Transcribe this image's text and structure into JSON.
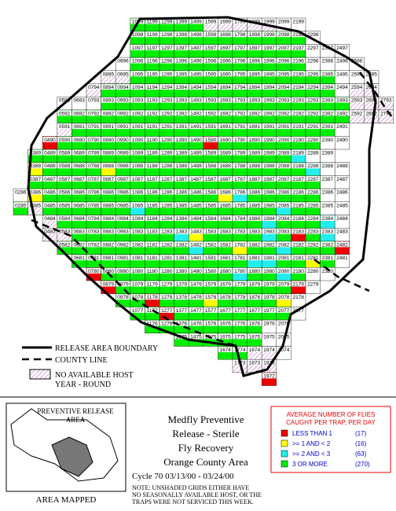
{
  "grid": {
    "rows": [
      {
        "cells": [
          "1099",
          "1199",
          "1299",
          "1399",
          "1499",
          "1599",
          "1699",
          "1799",
          "1899",
          "1999",
          "2099",
          "2199"
        ],
        "fill": "GGGGGHHHHHWW"
      },
      {
        "cells": [
          "1098",
          "1198",
          "1298",
          "1398",
          "1498",
          "1598",
          "1698",
          "1798",
          "1898",
          "1998",
          "2098",
          "2198",
          "2298"
        ],
        "fill": "GGGGGGGGGGGGW"
      },
      {
        "cells": [
          "1097",
          "1197",
          "1297",
          "1397",
          "1497",
          "1597",
          "1697",
          "1797",
          "1897",
          "1997",
          "2097",
          "2197",
          "2297",
          "2397",
          "2497"
        ],
        "fill": "GGGGGGGGGGGGWWW"
      },
      {
        "cells": [
          "0996",
          "1096",
          "1196",
          "1296",
          "1396",
          "1496",
          "1596",
          "1696",
          "1796",
          "1896",
          "1996",
          "2096",
          "2196",
          "2296",
          "2396",
          "2496",
          "2596"
        ],
        "fill": "WGGGGGGGGGGGGWWWW"
      },
      {
        "cells": [
          "0895",
          "0995",
          "1095",
          "1195",
          "1295",
          "1395",
          "1495",
          "1595",
          "1695",
          "1795",
          "1895",
          "1995",
          "2095",
          "2195",
          "2295",
          "2395",
          "2495",
          "2595",
          "2695"
        ],
        "fill": "HHGGGGGGGGGGGGGGWWW"
      },
      {
        "cells": [
          "0794",
          "0894",
          "0994",
          "1094",
          "1194",
          "1294",
          "1394",
          "1494",
          "1594",
          "1694",
          "1794",
          "1894",
          "1994",
          "2094",
          "2194",
          "2294",
          "2394",
          "2494",
          "2594",
          "2694"
        ],
        "fill": "HGGGGGGGGGGGGGGGGWHH"
      },
      {
        "cells": [
          "0593",
          "0693",
          "0793",
          "0893",
          "0993",
          "1093",
          "1193",
          "1293",
          "1393",
          "1493",
          "1593",
          "1693",
          "1793",
          "1893",
          "1993",
          "2093",
          "2193",
          "2293",
          "2393",
          "2493",
          "2593",
          "2693",
          "2793"
        ],
        "fill": "WWWGGGGGGGGGGGGGGGGGHHH"
      },
      {
        "cells": [
          "0592",
          "0692",
          "0792",
          "0892",
          "0992",
          "1092",
          "1192",
          "1292",
          "1392",
          "1492",
          "1592",
          "1692",
          "1792",
          "1892",
          "1992",
          "2092",
          "2192",
          "2292",
          "2392",
          "2492",
          "2592",
          "2692",
          "2792"
        ],
        "fill": "GGGGGGGGGGGGGGGGGGGGHHH"
      },
      {
        "cells": [
          "0591",
          "0691",
          "0791",
          "0891",
          "0991",
          "1091",
          "1191",
          "1291",
          "1391",
          "1491",
          "1591",
          "1691",
          "1791",
          "1891",
          "1991",
          "2091",
          "2191",
          "2291",
          "2391",
          "2491"
        ],
        "fill": "HGGGGGGGGGGGGGGGGGGW"
      },
      {
        "cells": [
          "0490",
          "0590",
          "0690",
          "0790",
          "0890",
          "0990",
          "1090",
          "1190",
          "1290",
          "1390",
          "1490",
          "1590",
          "1690",
          "1790",
          "1890",
          "1990",
          "2090",
          "2190",
          "2290",
          "2390",
          "2490"
        ],
        "fill": "RGGGGGGGGGGRGGGGGGGWW"
      },
      {
        "cells": [
          "0389",
          "0489",
          "0589",
          "0689",
          "0789",
          "0889",
          "0989",
          "1089",
          "1189",
          "1289",
          "1389",
          "1489",
          "1589",
          "1689",
          "1789",
          "1889",
          "1989",
          "2089",
          "2189",
          "2289",
          "2389"
        ],
        "fill": "GGGGGGGGGGGGGGGGGGCWW"
      },
      {
        "cells": [
          "0388",
          "0488",
          "0588",
          "0688",
          "0788",
          "0888",
          "0988",
          "1088",
          "1188",
          "1288",
          "1388",
          "1488",
          "1588",
          "1688",
          "1788",
          "1888",
          "1988",
          "2088",
          "2188",
          "2288",
          "2388",
          "2488"
        ],
        "fill": "YGGGGYGGGGGGGGGGGGGCWW"
      },
      {
        "cells": [
          "0387",
          "0487",
          "0587",
          "0687",
          "0787",
          "0887",
          "0987",
          "1087",
          "1187",
          "1287",
          "1387",
          "1487",
          "1587",
          "1687",
          "1787",
          "1887",
          "1987",
          "2087",
          "2187",
          "2287",
          "2387",
          "2487"
        ],
        "fill": "GGGGGGGGGGGGGGGGGGGGWW"
      },
      {
        "cells": [
          "0286",
          "0386",
          "0486",
          "0586",
          "0686",
          "0786",
          "0886",
          "0986",
          "1086",
          "1186",
          "1286",
          "1386",
          "1486",
          "1586",
          "1686",
          "1786",
          "1886",
          "1986",
          "2086",
          "2186",
          "2286",
          "2386",
          "2486"
        ],
        "fill": "WYGGGGGGGGGGGGYCGGGGGWW"
      },
      {
        "cells": [
          "0285",
          "0385",
          "0485",
          "0585",
          "0685",
          "0785",
          "0885",
          "0985",
          "1085",
          "1185",
          "1285",
          "1385",
          "1485",
          "1585",
          "1685",
          "1785",
          "1885",
          "1985",
          "2085",
          "2185",
          "2285",
          "2385",
          "2485"
        ],
        "fill": "GHGGGGGGCGGGGGGGGGCGGWW"
      },
      {
        "cells": [
          "0484",
          "0584",
          "0684",
          "0784",
          "0884",
          "0984",
          "1084",
          "1184",
          "1284",
          "1384",
          "1484",
          "1584",
          "1684",
          "1784",
          "1884",
          "1984",
          "2084",
          "2184",
          "2284",
          "2384",
          "2484"
        ],
        "fill": "HGGGGGGGGGGGGGGCGGGCW"
      },
      {
        "cells": [
          "0483",
          "0583",
          "0683",
          "0783",
          "0883",
          "0983",
          "1083",
          "1183",
          "1283",
          "1383",
          "1483",
          "1583",
          "1683",
          "1783",
          "1883",
          "1983",
          "2083",
          "2183",
          "2283",
          "2383",
          "2483"
        ],
        "fill": "HHGGGGGGGCYGGGGCGRGCW"
      },
      {
        "cells": [
          "0582",
          "0682",
          "0782",
          "0882",
          "0982",
          "1082",
          "1182",
          "1282",
          "1382",
          "1482",
          "1582",
          "1682",
          "1782",
          "1882",
          "1982",
          "2082",
          "2182",
          "2282",
          "2382",
          "2482"
        ],
        "fill": "GGGGGGGGGCGGYGGCGGGR"
      },
      {
        "cells": [
          "0681",
          "0781",
          "0881",
          "0981",
          "1081",
          "1181",
          "1281",
          "1381",
          "1481",
          "1581",
          "1681",
          "1781",
          "1881",
          "1981",
          "2081",
          "2181",
          "2281",
          "2381",
          "2481"
        ],
        "fill": "GGGGGGGGGGGGCCGGYGW"
      },
      {
        "cells": [
          "0780",
          "0880",
          "0980",
          "1080",
          "1180",
          "1280",
          "1380",
          "1480",
          "1580",
          "1680",
          "1780",
          "1880",
          "1980",
          "2080",
          "2180",
          "2280",
          "2380"
        ],
        "fill": "RGGGGGGGGGCGGCGWW"
      },
      {
        "cells": [
          "0879",
          "0979",
          "1079",
          "1179",
          "1279",
          "1379",
          "1479",
          "1579",
          "1679",
          "1779",
          "1879",
          "1979",
          "2079",
          "2179",
          "2279"
        ],
        "fill": "RGGGGGGGGGGGGRW"
      },
      {
        "cells": [
          "0978",
          "1078",
          "1178",
          "1278",
          "1378",
          "1478",
          "1578",
          "1678",
          "1778",
          "1878",
          "1978",
          "2078",
          "2178"
        ],
        "fill": "GGRGGGYGGGGYW"
      },
      {
        "cells": [
          "1077",
          "1177",
          "1277",
          "1377",
          "1477",
          "1577",
          "1677",
          "1777",
          "1877",
          "1977",
          "2077",
          "2177"
        ],
        "fill": "GGRGGGGGGGGW"
      },
      {
        "cells": [
          "1176",
          "1276",
          "1376",
          "1476",
          "1576",
          "1676",
          "1776",
          "1876",
          "1976",
          "2076"
        ],
        "fill": "GGGGGGGGWW"
      },
      {
        "cells": [
          "1375",
          "1475",
          "1575",
          "1675",
          "1775",
          "1875",
          "1975",
          "2075"
        ],
        "fill": "GGGGGGWW"
      },
      {
        "cells": [
          "1674",
          "1774",
          "1874",
          "1974",
          "2074"
        ],
        "fill": "GGHHW"
      },
      {
        "cells": [
          "1773",
          "1873",
          "1973"
        ],
        "fill": "HHH"
      },
      {
        "cells": [
          "1972"
        ],
        "fill": "R"
      }
    ],
    "colors": {
      "G": "#00ee00",
      "C": "#22eeee",
      "Y": "#ffff00",
      "R": "#ee0000",
      "W": "#ffffff"
    }
  },
  "map_legend": {
    "boundary": "RELEASE AREA BOUNDARY",
    "county": "COUNTY LINE",
    "no_host": [
      "NO AVAILABLE HOST",
      "YEAR - ROUND"
    ]
  },
  "inset": {
    "label": [
      "PREVENTIVE RELEASE",
      "AREA"
    ],
    "caption": "AREA MAPPED"
  },
  "title_block": {
    "lines": [
      "Medfly Preventive",
      "Release - Sterile",
      "Fly Recovery",
      "Orange County Area"
    ],
    "cycle": "Cycle 70   03/13/00 - 03/24/00",
    "note": [
      "NOTE: UNSHADED GRIDS EITHER HAVE",
      "NO SEASONALLY AVAILABLE HOST, OR THE",
      "TRAPS WERE NOT SERVICED THIS WEEK."
    ]
  },
  "count_legend": {
    "title": [
      "AVERAGE NUMBER OF FLIES",
      "CAUGHT PER TRAP, PER DAY"
    ],
    "entries": [
      {
        "label": "LESS THAN 1",
        "count": "(17)",
        "color": "#ee0000"
      },
      {
        "label": ">= 1 AND < 2",
        "count": "(16)",
        "color": "#ffff00"
      },
      {
        "label": ">= 2 AND < 3",
        "count": "(63)",
        "color": "#22eeee"
      },
      {
        "label": "3 OR MORE",
        "count": "(270)",
        "color": "#00ee00"
      }
    ]
  }
}
